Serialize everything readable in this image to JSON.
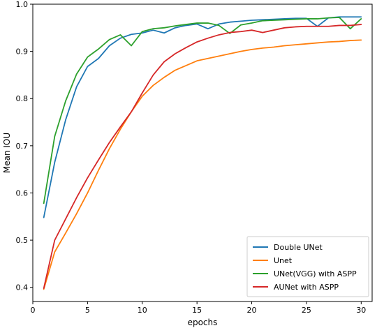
{
  "chart_data": {
    "type": "line",
    "title": "",
    "xlabel": "epochs",
    "ylabel": "Mean IOU",
    "xlim": [
      0,
      31
    ],
    "ylim": [
      0.37,
      1.0
    ],
    "xticks": [
      0,
      5,
      10,
      15,
      20,
      25,
      30
    ],
    "yticks": [
      0.4,
      0.5,
      0.6,
      0.7,
      0.8,
      0.9,
      1.0
    ],
    "xtick_labels": [
      "0",
      "5",
      "10",
      "15",
      "20",
      "25",
      "30"
    ],
    "ytick_labels": [
      "0.4",
      "0.5",
      "0.6",
      "0.7",
      "0.8",
      "0.9",
      "1.0"
    ],
    "grid": false,
    "legend_position": "lower-right",
    "x": [
      1,
      2,
      3,
      4,
      5,
      6,
      7,
      8,
      9,
      10,
      11,
      12,
      13,
      14,
      15,
      16,
      17,
      18,
      19,
      20,
      21,
      22,
      23,
      24,
      25,
      26,
      27,
      28,
      29,
      30
    ],
    "series": [
      {
        "name": "Double UNet",
        "color": "#1f77b4",
        "values": [
          0.548,
          0.665,
          0.755,
          0.825,
          0.868,
          0.885,
          0.912,
          0.928,
          0.936,
          0.939,
          0.945,
          0.939,
          0.95,
          0.955,
          0.958,
          0.948,
          0.958,
          0.962,
          0.964,
          0.966,
          0.967,
          0.968,
          0.969,
          0.97,
          0.97,
          0.953,
          0.971,
          0.973,
          0.973,
          0.973
        ]
      },
      {
        "name": "Unet",
        "color": "#ff7f0e",
        "values": [
          0.396,
          0.475,
          0.515,
          0.556,
          0.6,
          0.648,
          0.694,
          0.735,
          0.772,
          0.805,
          0.828,
          0.845,
          0.86,
          0.87,
          0.88,
          0.885,
          0.89,
          0.895,
          0.9,
          0.904,
          0.907,
          0.909,
          0.912,
          0.914,
          0.916,
          0.918,
          0.92,
          0.921,
          0.923,
          0.924
        ]
      },
      {
        "name": "UNet(VGG) with ASPP",
        "color": "#2ca02c",
        "values": [
          0.578,
          0.72,
          0.795,
          0.852,
          0.888,
          0.905,
          0.925,
          0.935,
          0.912,
          0.942,
          0.948,
          0.95,
          0.954,
          0.957,
          0.96,
          0.96,
          0.955,
          0.938,
          0.956,
          0.96,
          0.965,
          0.966,
          0.967,
          0.968,
          0.969,
          0.969,
          0.971,
          0.972,
          0.948,
          0.969
        ]
      },
      {
        "name": "AUNet with ASPP",
        "color": "#d62728",
        "values": [
          0.398,
          0.5,
          0.545,
          0.59,
          0.632,
          0.67,
          0.707,
          0.74,
          0.772,
          0.812,
          0.85,
          0.878,
          0.895,
          0.908,
          0.92,
          0.928,
          0.935,
          0.94,
          0.942,
          0.945,
          0.94,
          0.945,
          0.95,
          0.952,
          0.953,
          0.953,
          0.953,
          0.955,
          0.955,
          0.957
        ]
      }
    ]
  }
}
